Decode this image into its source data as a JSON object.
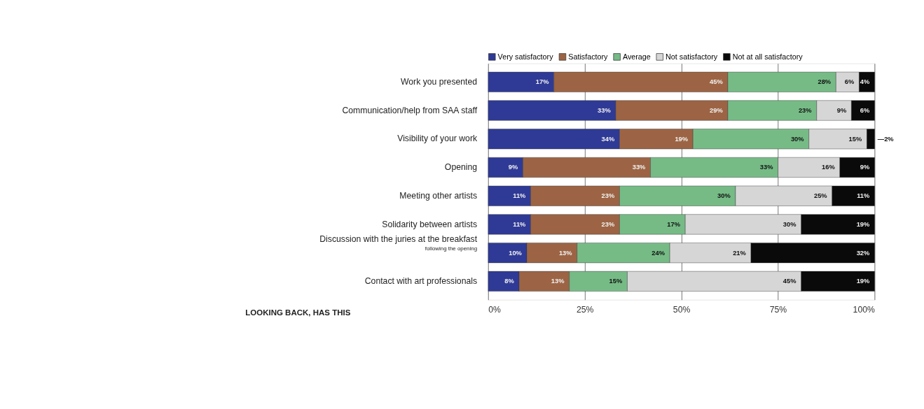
{
  "chart_data": {
    "type": "bar",
    "orientation": "horizontal",
    "stacked": true,
    "categories": [
      "Work you presented",
      "Communication/help from SAA staff",
      "Visibility of your work",
      "Opening",
      "Meeting other artists",
      "Solidarity between artists",
      "Discussion with the juries at the breakfast\nfollowing the opening",
      "Contact with art professionals"
    ],
    "series": [
      {
        "name": "Very satisfactory",
        "color": "#2f3a96",
        "values": [
          17,
          33,
          34,
          9,
          11,
          11,
          10,
          8
        ],
        "value_labels": [
          "17%",
          "33%",
          "34%",
          "9%",
          "11%",
          "11%",
          "10%",
          "8%"
        ]
      },
      {
        "name": "Satisfactory",
        "color": "#9c6444",
        "values": [
          45,
          29,
          19,
          33,
          23,
          23,
          13,
          13
        ],
        "value_labels": [
          "45%",
          "29%",
          "19%",
          "33%",
          "23%",
          "23%",
          "13%",
          "13%"
        ]
      },
      {
        "name": "Average",
        "color": "#76bb86",
        "values": [
          28,
          23,
          30,
          33,
          30,
          17,
          24,
          15
        ],
        "value_labels": [
          "28%",
          "23%",
          "30%",
          "33%",
          "30%",
          "17%",
          "24%",
          "15%"
        ]
      },
      {
        "name": "Not satisfactory",
        "color": "#d6d6d6",
        "values": [
          6,
          9,
          15,
          16,
          25,
          30,
          21,
          45
        ],
        "value_labels": [
          "6%",
          "9%",
          "15%",
          "16%",
          "25%",
          "30%",
          "21%",
          "45%"
        ]
      },
      {
        "name": "Not at all satisfactory",
        "color": "#0a0a0a",
        "values": [
          4,
          6,
          2,
          9,
          11,
          19,
          32,
          19
        ],
        "value_labels": [
          "4%",
          "6%",
          "—2%",
          "9%",
          "11%",
          "19%",
          "32%",
          "19%"
        ]
      }
    ],
    "xlim": [
      0,
      100
    ],
    "xticks": [
      {
        "value": 0,
        "label": "0%"
      },
      {
        "value": 25,
        "label": "25%"
      },
      {
        "value": 50,
        "label": "50%"
      },
      {
        "value": 75,
        "label": "75%"
      },
      {
        "value": 100,
        "label": "100%"
      }
    ],
    "grid": "x",
    "legend": "top",
    "annotations": [
      "LOOKING BACK, HAS THIS"
    ]
  }
}
